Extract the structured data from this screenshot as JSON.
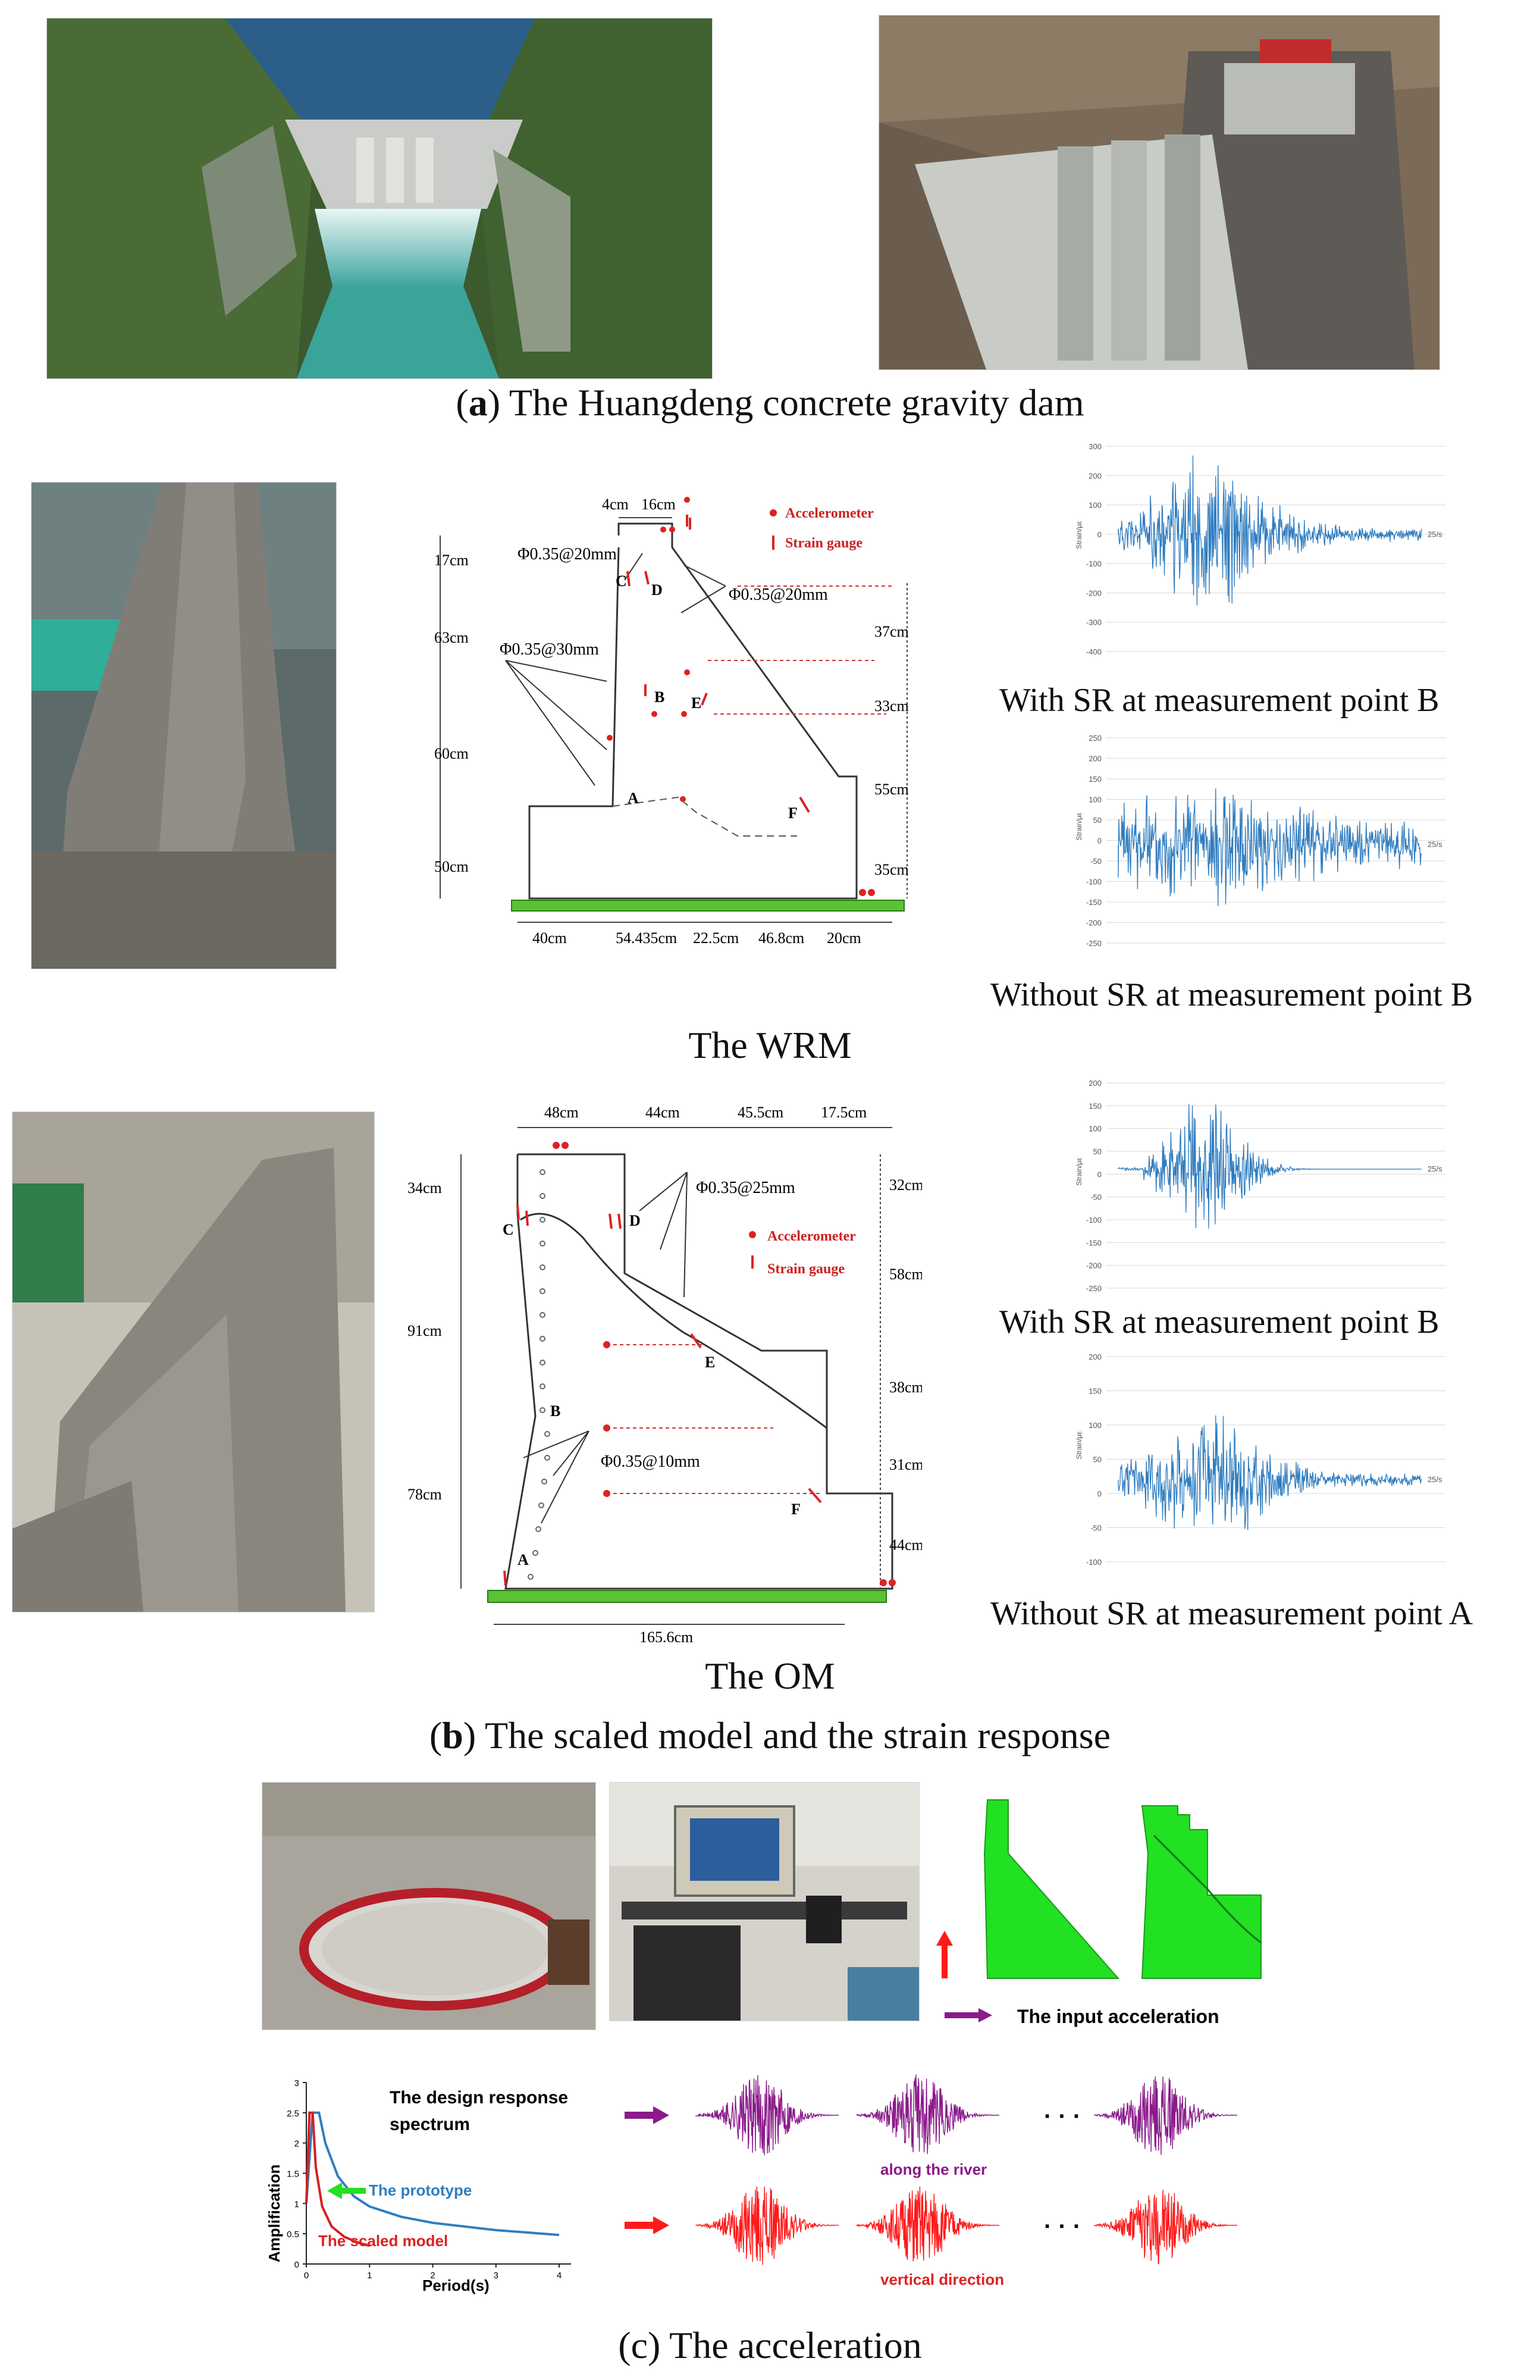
{
  "panel_a": {
    "caption_letter": "a",
    "caption_text": " The Huangdeng concrete gravity dam"
  },
  "panel_b": {
    "caption_letter": "b",
    "caption_text": " The scaled model and the strain response",
    "wrm": {
      "title": "The WRM",
      "legend_accelerometer": "Accelerometer",
      "legend_strain": "Strain gauge",
      "dims_top": [
        "4cm",
        "16cm"
      ],
      "dims_left": [
        "17cm",
        "63cm",
        "60cm",
        "50cm"
      ],
      "dims_right": [
        "37cm",
        "33cm",
        "55cm",
        "35cm"
      ],
      "dims_bottom": [
        "40cm",
        "54.435cm",
        "22.5cm",
        "46.8cm",
        "20cm"
      ],
      "rebar_1": "Φ0.35@20mm",
      "rebar_2": "Φ0.35@20mm",
      "rebar_3": "Φ0.35@30mm",
      "points": [
        "A",
        "B",
        "C",
        "D",
        "E",
        "F"
      ],
      "plot1_label": "With SR at measurement point B",
      "plot2_label": "Without SR at measurement point B",
      "plot1_yticks": [
        "300",
        "200",
        "100",
        "0",
        "-100",
        "-200",
        "-300",
        "-400"
      ],
      "plot2_yticks": [
        "250",
        "200",
        "150",
        "100",
        "50",
        "0",
        "-50",
        "-100",
        "-150",
        "-200",
        "-250"
      ],
      "plot_end": "25/s",
      "ylabel": "Strain/με"
    },
    "om": {
      "title": "The OM",
      "legend_accelerometer": "Accelerometer",
      "legend_strain": "Strain gauge",
      "dims_top": [
        "48cm",
        "44cm",
        "45.5cm",
        "17.5cm"
      ],
      "dims_left": [
        "34cm",
        "91cm",
        "78cm"
      ],
      "dims_right": [
        "32cm",
        "58cm",
        "38cm",
        "31cm",
        "44cm"
      ],
      "dims_bottom": [
        "165.6cm"
      ],
      "rebar_1": "Φ0.35@25mm",
      "rebar_2": "Φ0.35@10mm",
      "points": [
        "A",
        "B",
        "C",
        "D",
        "E",
        "F"
      ],
      "plot1_label": "With SR at measurement point B",
      "plot2_label": "Without SR at measurement point A",
      "plot1_yticks": [
        "200",
        "150",
        "100",
        "50",
        "0",
        "-50",
        "-100",
        "-150",
        "-200",
        "-250"
      ],
      "plot2_yticks": [
        "200",
        "150",
        "100",
        "50",
        "0",
        "-50",
        "-100"
      ],
      "plot_end": "25/s",
      "ylabel": "Strain/με"
    }
  },
  "panel_c": {
    "caption_letter": "c",
    "caption_text": " The acceleration",
    "input_acceleration": "The input acceleration",
    "spectrum_title_1": "The design response",
    "spectrum_title_2": "spectrum",
    "prototype_label": "The prototype",
    "scaled_label": "The scaled model",
    "xlabel": "Period(s)",
    "ylabel": "Amplification",
    "along_river": "along the river",
    "vertical": "vertical direction",
    "dots": "· · ·",
    "colors": {
      "purple": "#8b1a8b",
      "red": "#ff1a1a",
      "green": "#22e022",
      "blue": "#2f7fc0"
    }
  },
  "chart_data": {
    "type": "line",
    "title": "The design response spectrum",
    "xlabel": "Period(s)",
    "ylabel": "Amplification",
    "xlim": [
      0,
      4
    ],
    "ylim": [
      0,
      3
    ],
    "xticks": [
      0,
      1,
      2,
      3,
      4
    ],
    "yticks": [
      0,
      0.5,
      1,
      1.5,
      2,
      2.5,
      3
    ],
    "series": [
      {
        "name": "The prototype",
        "x": [
          0,
          0.1,
          0.2,
          0.3,
          0.5,
          0.75,
          1.0,
          1.5,
          2.0,
          3.0,
          4.0
        ],
        "y": [
          1.0,
          2.5,
          2.5,
          2.0,
          1.45,
          1.12,
          0.95,
          0.78,
          0.68,
          0.56,
          0.48
        ]
      },
      {
        "name": "The scaled model",
        "x": [
          0,
          0.05,
          0.1,
          0.15,
          0.25,
          0.4,
          0.6,
          0.8,
          1.0
        ],
        "y": [
          1.0,
          2.5,
          2.5,
          1.6,
          0.95,
          0.62,
          0.45,
          0.36,
          0.3
        ]
      }
    ]
  }
}
